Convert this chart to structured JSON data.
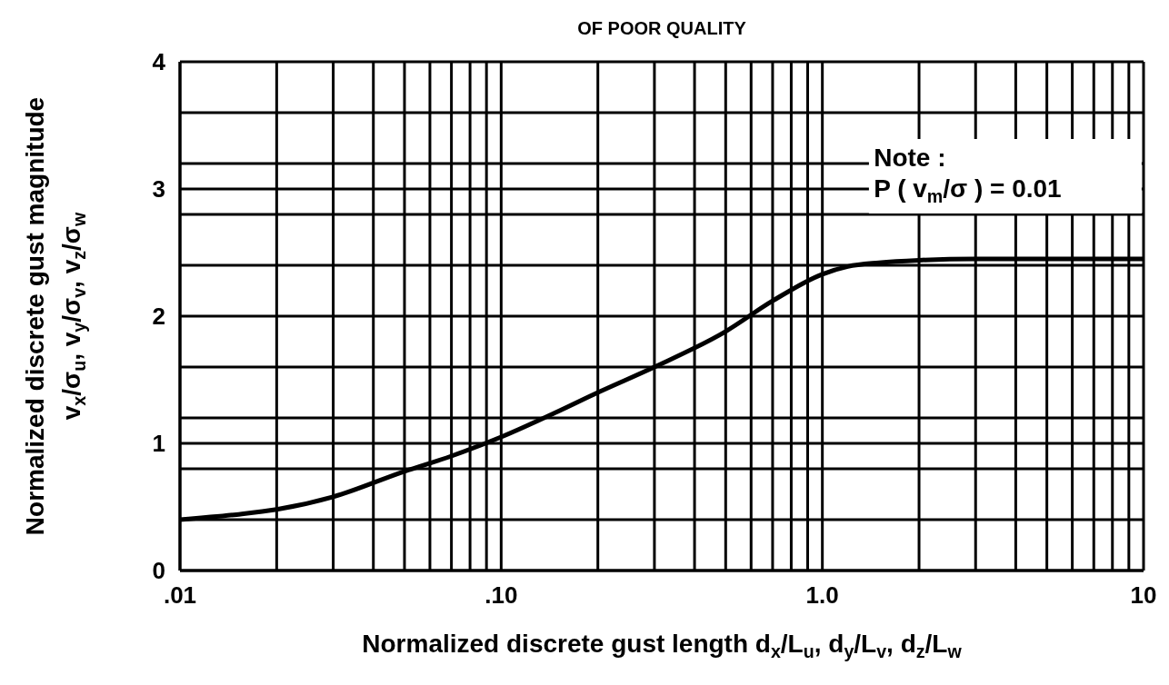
{
  "chart_data": {
    "type": "line",
    "xlabel": "Normalized discrete gust length d$_{x}$/L$_{u}$, d$_{y}$/L$_{v}$, d$_{z}$/L$_{w}$",
    "ylabel": "Normalized discrete gust magnitude\nv$_{x}$/σ$_{u}$, v$_{y}$/σ$_{v}$, v$_{z}$/σ$_{w}$",
    "annotations": [
      "OF POOR QUALITY",
      "Note :",
      "P ( v$_{m}$/σ ) = 0.01"
    ],
    "log": "x",
    "x": [
      0.01,
      0.015,
      0.02,
      0.03,
      0.05,
      0.07,
      0.1,
      0.15,
      0.2,
      0.3,
      0.5,
      0.7,
      1.0,
      1.2,
      1.5,
      2,
      3,
      5,
      10
    ],
    "series": [
      {
        "color": "#000000",
        "values": [
          0.4,
          0.44,
          0.48,
          0.58,
          0.78,
          0.9,
          1.05,
          1.25,
          1.4,
          1.6,
          1.88,
          2.12,
          2.33,
          2.39,
          2.42,
          2.44,
          2.45,
          2.45,
          2.45
        ]
      }
    ],
    "xlim": [
      0.01,
      10
    ],
    "xticks": [
      {
        "value": 0.01,
        "label": ".01"
      },
      {
        "value": 0.02,
        "label": null
      },
      {
        "value": 0.03,
        "label": null
      },
      {
        "value": 0.04,
        "label": null
      },
      {
        "value": 0.05,
        "label": null
      },
      {
        "value": 0.06,
        "label": null
      },
      {
        "value": 0.07,
        "label": null
      },
      {
        "value": 0.08,
        "label": null
      },
      {
        "value": 0.09,
        "label": null
      },
      {
        "value": 0.1,
        "label": ".10"
      },
      {
        "value": 0.2,
        "label": null
      },
      {
        "value": 0.3,
        "label": null
      },
      {
        "value": 0.4,
        "label": null
      },
      {
        "value": 0.5,
        "label": null
      },
      {
        "value": 0.6,
        "label": null
      },
      {
        "value": 0.7,
        "label": null
      },
      {
        "value": 0.8,
        "label": null
      },
      {
        "value": 0.9,
        "label": null
      },
      {
        "value": 1,
        "label": "1.0"
      },
      {
        "value": 2,
        "label": null
      },
      {
        "value": 3,
        "label": null
      },
      {
        "value": 4,
        "label": null
      },
      {
        "value": 5,
        "label": null
      },
      {
        "value": 6,
        "label": null
      },
      {
        "value": 7,
        "label": null
      },
      {
        "value": 8,
        "label": null
      },
      {
        "value": 9,
        "label": null
      },
      10
    ],
    "ylim": [
      0,
      4
    ],
    "yticks": [
      0,
      {
        "value": 0.4,
        "label": null
      },
      {
        "value": 0.8,
        "label": null
      },
      1,
      {
        "value": 1.2,
        "label": null
      },
      {
        "value": 1.6,
        "label": null
      },
      2,
      {
        "value": 2.4,
        "label": null
      },
      {
        "value": 2.8,
        "label": null
      },
      3,
      {
        "value": 3.2,
        "label": null
      },
      {
        "value": 3.6,
        "label": null
      },
      4
    ],
    "grid": true
  }
}
